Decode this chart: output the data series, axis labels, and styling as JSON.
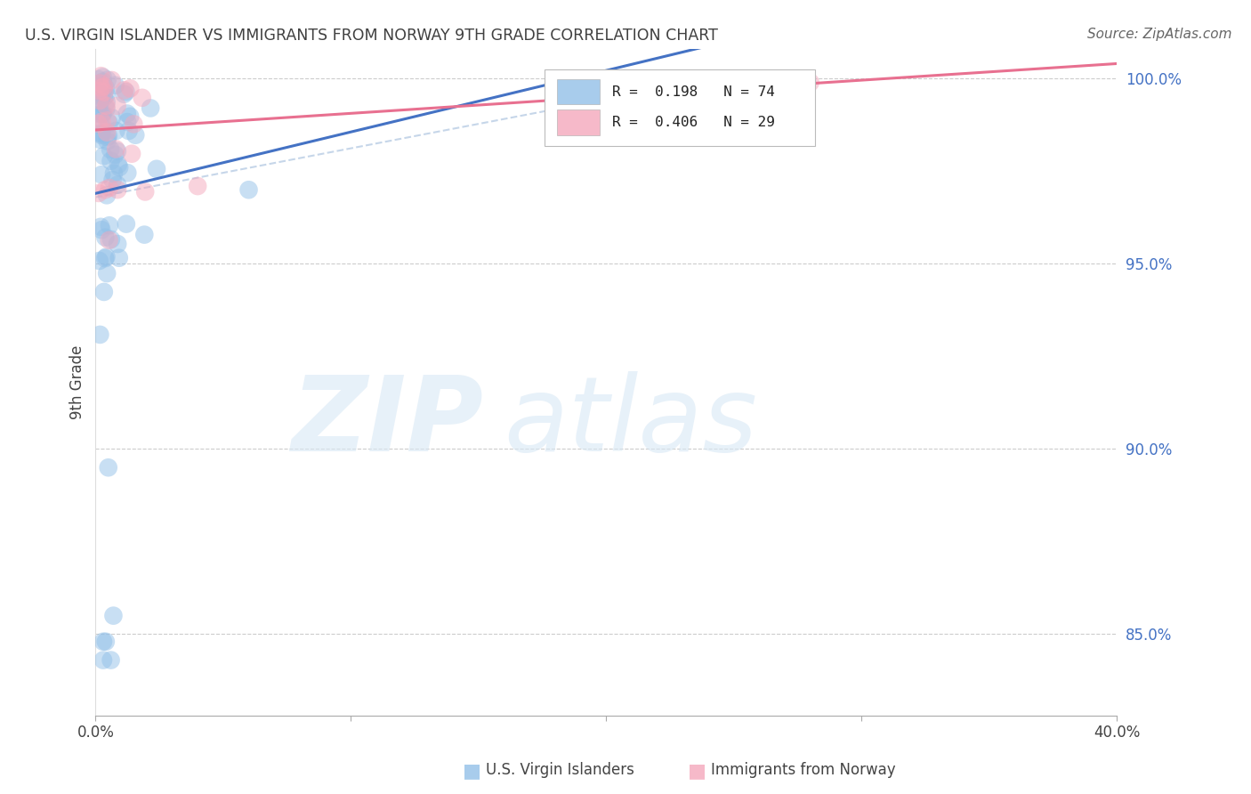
{
  "title": "U.S. VIRGIN ISLANDER VS IMMIGRANTS FROM NORWAY 9TH GRADE CORRELATION CHART",
  "source": "Source: ZipAtlas.com",
  "ylabel_label": "9th Grade",
  "x_min": 0.0,
  "x_max": 0.4,
  "y_min": 0.828,
  "y_max": 1.008,
  "x_ticks": [
    0.0,
    0.1,
    0.2,
    0.3,
    0.4
  ],
  "x_tick_labels": [
    "0.0%",
    "",
    "",
    "",
    "40.0%"
  ],
  "y_ticks": [
    0.85,
    0.9,
    0.95,
    1.0
  ],
  "y_tick_labels": [
    "85.0%",
    "90.0%",
    "95.0%",
    "100.0%"
  ],
  "R_blue": 0.198,
  "N_blue": 74,
  "R_pink": 0.406,
  "N_pink": 29,
  "blue_color": "#92C0E8",
  "pink_color": "#F4A8BC",
  "blue_line_color": "#4472C4",
  "pink_line_color": "#E87090",
  "diag_color": "#B8CCE4",
  "grid_color": "#CCCCCC",
  "ytick_color": "#4472C4",
  "title_color": "#404040",
  "source_color": "#666666"
}
